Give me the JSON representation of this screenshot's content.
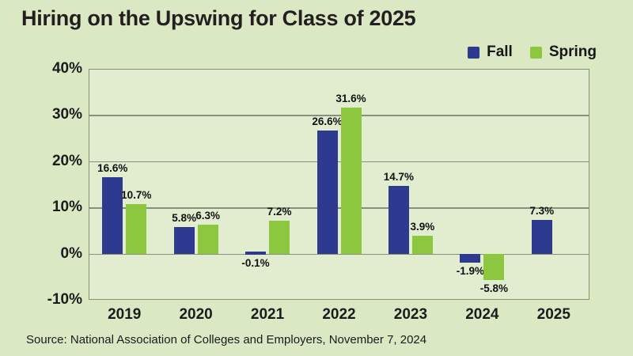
{
  "title": "Hiring on the Upswing for Class of 2025",
  "source": "Source: National Association of Colleges and Employers, November 7, 2024",
  "legend": {
    "items": [
      {
        "label": "Fall",
        "color": "#2d3a8f"
      },
      {
        "label": "Spring",
        "color": "#8dc63f"
      }
    ]
  },
  "colors": {
    "background": "#dbe8c4",
    "plot_background": "#e2edd0",
    "grid": "#85907d",
    "fall": "#2d3a8f",
    "spring": "#8dc63f",
    "text": "#231f20"
  },
  "chart_data": {
    "type": "bar",
    "title": "Hiring on the Upswing for Class of 2025",
    "categories": [
      "2019",
      "2020",
      "2021",
      "2022",
      "2023",
      "2024",
      "2025"
    ],
    "series": [
      {
        "name": "Fall",
        "color": "#2d3a8f",
        "values": [
          16.6,
          5.8,
          -0.1,
          26.6,
          14.7,
          -1.9,
          7.3
        ]
      },
      {
        "name": "Spring",
        "color": "#8dc63f",
        "values": [
          10.7,
          6.3,
          7.2,
          31.6,
          3.9,
          -5.8,
          null
        ]
      }
    ],
    "value_labels": [
      [
        "16.6%",
        "5.8%",
        "-0.1%",
        "26.6%",
        "14.7%",
        "-1.9%",
        "7.3%"
      ],
      [
        "10.7%",
        "6.3%",
        "7.2%",
        "31.6%",
        "3.9%",
        "-5.8%",
        null
      ]
    ],
    "xlabel": "",
    "ylabel": "",
    "ylim": [
      -10,
      40
    ],
    "yticks": [
      {
        "value": 40,
        "label": "40%"
      },
      {
        "value": 30,
        "label": "30%"
      },
      {
        "value": 20,
        "label": "20%"
      },
      {
        "value": 10,
        "label": "10%"
      },
      {
        "value": 0,
        "label": "0%"
      },
      {
        "value": -10,
        "label": "-10%"
      }
    ],
    "grid": true,
    "legend_position": "top-right"
  }
}
